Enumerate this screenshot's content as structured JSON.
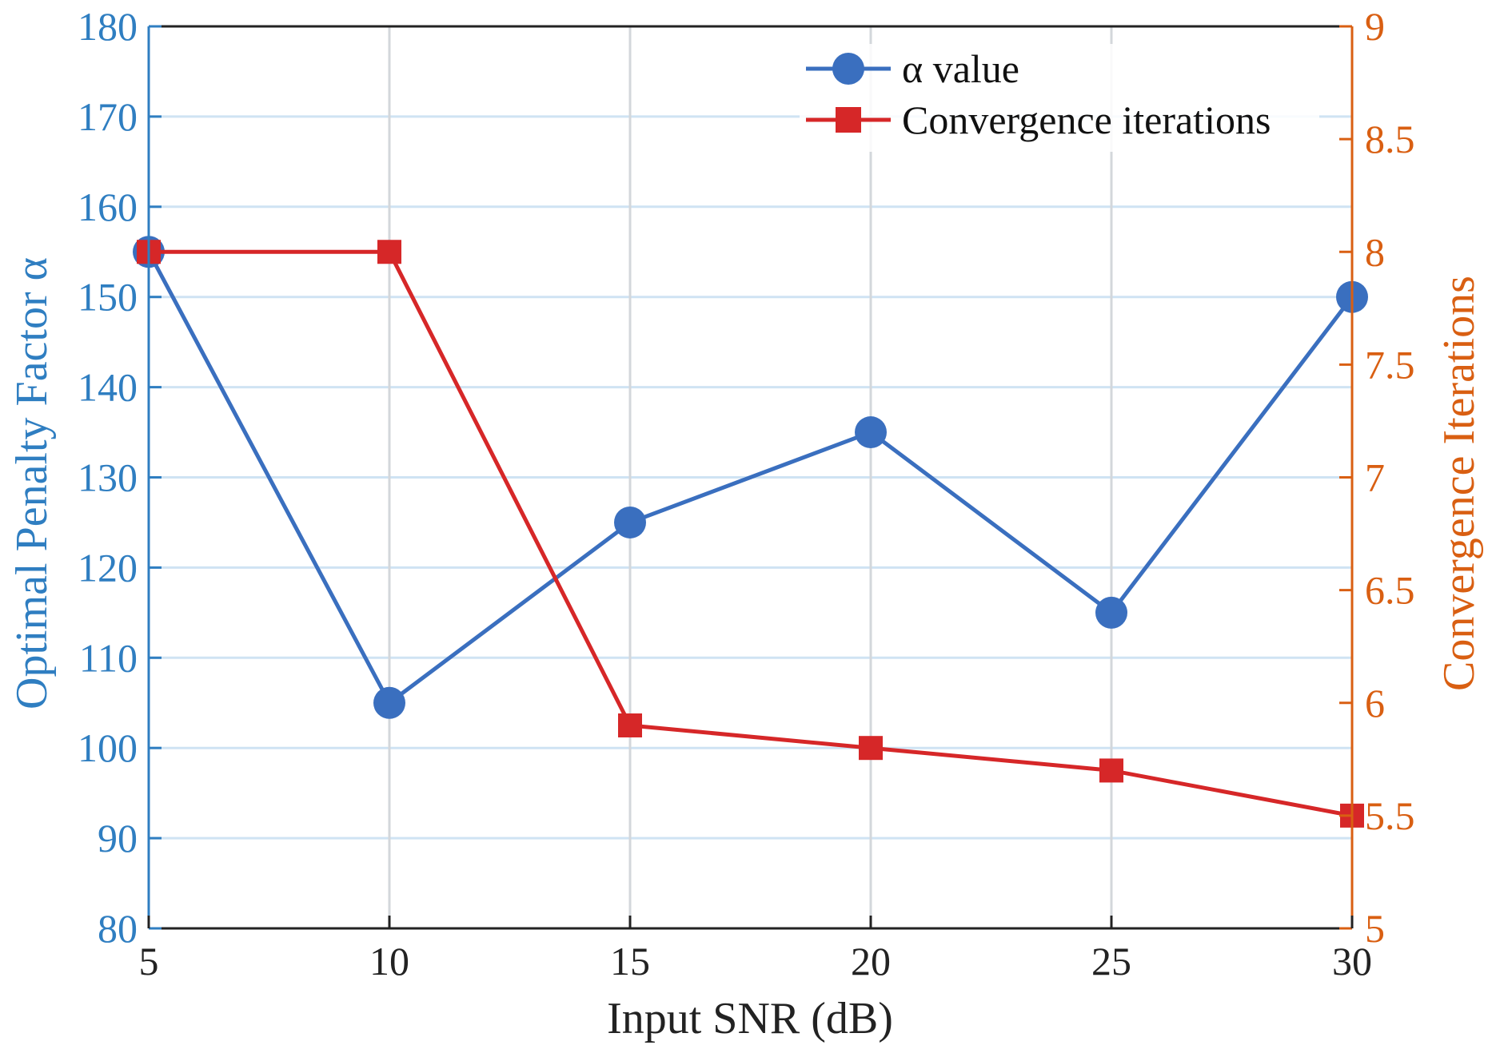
{
  "chart_data": {
    "type": "line",
    "x": [
      5,
      10,
      15,
      20,
      25,
      30
    ],
    "xlabel": "Input SNR (dB)",
    "ylabel_left": "Optimal Penalty Factor α",
    "ylabel_right": "Convergence Iterations",
    "xlim": [
      5,
      30
    ],
    "ylim_left": [
      80,
      180
    ],
    "ylim_right": [
      5,
      9
    ],
    "xticks": [
      "5",
      "10",
      "15",
      "20",
      "25",
      "30"
    ],
    "yticks_left": [
      "80",
      "90",
      "100",
      "110",
      "120",
      "130",
      "140",
      "150",
      "160",
      "170",
      "180"
    ],
    "yticks_right": [
      "5",
      "5.5",
      "6",
      "6.5",
      "7",
      "7.5",
      "8",
      "8.5",
      "9"
    ],
    "grid": true,
    "legend_position": "top-right",
    "series": [
      {
        "name": "α value",
        "axis": "left",
        "marker": "circle",
        "color": "#3a6fbf",
        "values": [
          155,
          105,
          125,
          135,
          115,
          150
        ]
      },
      {
        "name": "Convergence iterations",
        "axis": "right",
        "marker": "square",
        "color": "#d62728",
        "values": [
          8.0,
          8.0,
          5.9,
          5.8,
          5.7,
          5.5
        ]
      }
    ],
    "colors": {
      "left_axis": "#2f7ec1",
      "right_axis": "#d95f12",
      "x_axis": "#222222",
      "grid_horizontal": "#cfe3f3",
      "grid_vertical": "#d3d7db"
    }
  }
}
